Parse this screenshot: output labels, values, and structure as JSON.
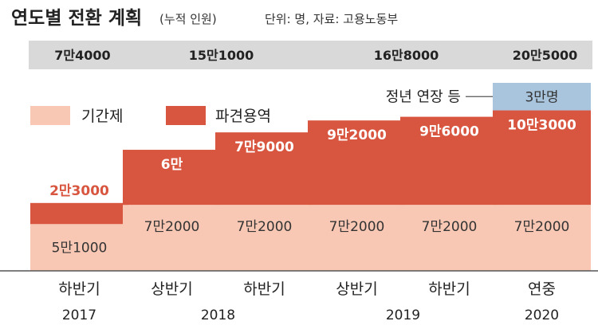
{
  "chart_data": {
    "type": "bar",
    "stacked": true,
    "title": "연도별 전환 계획",
    "subtitle": "(누적 인원)",
    "unit_note": "단위: 명, 자료: 고용노동부",
    "categories": [
      "하반기",
      "상반기",
      "하반기",
      "상반기",
      "하반기",
      "연중"
    ],
    "years": [
      {
        "label": "2017",
        "first": 0,
        "last": 0
      },
      {
        "label": "2018",
        "first": 1,
        "last": 2
      },
      {
        "label": "2019",
        "first": 3,
        "last": 4
      },
      {
        "label": "2020",
        "first": 5,
        "last": 5
      }
    ],
    "cumulative_totals": [
      {
        "label": "7만4000",
        "value": 74000,
        "first": 0,
        "last": 0
      },
      {
        "label": "15만1000",
        "value": 151000,
        "first": 1,
        "last": 2
      },
      {
        "label": "16만8000",
        "value": 168000,
        "first": 3,
        "last": 4
      },
      {
        "label": "20만5000",
        "value": 205000,
        "first": 5,
        "last": 5
      }
    ],
    "series": [
      {
        "name": "기간제",
        "color": "#f8c8b4",
        "values": [
          51000,
          72000,
          72000,
          72000,
          72000,
          72000
        ],
        "labels": [
          "5만1000",
          "7만2000",
          "7만2000",
          "7만2000",
          "7만2000",
          "7만2000"
        ]
      },
      {
        "name": "파견용역",
        "color": "#d8553f",
        "values": [
          23000,
          60000,
          79000,
          92000,
          96000,
          103000
        ],
        "labels": [
          "2만3000",
          "6만",
          "7만9000",
          "9만2000",
          "9만6000",
          "10만3000"
        ]
      },
      {
        "name": "정년 연장 등",
        "color": "#a9c4dd",
        "values": [
          0,
          0,
          0,
          0,
          0,
          30000
        ],
        "labels": [
          "",
          "",
          "",
          "",
          "",
          "3만명"
        ]
      }
    ],
    "ylim": [
      0,
      205000
    ],
    "legend_placement": "top-left",
    "grid": false
  }
}
